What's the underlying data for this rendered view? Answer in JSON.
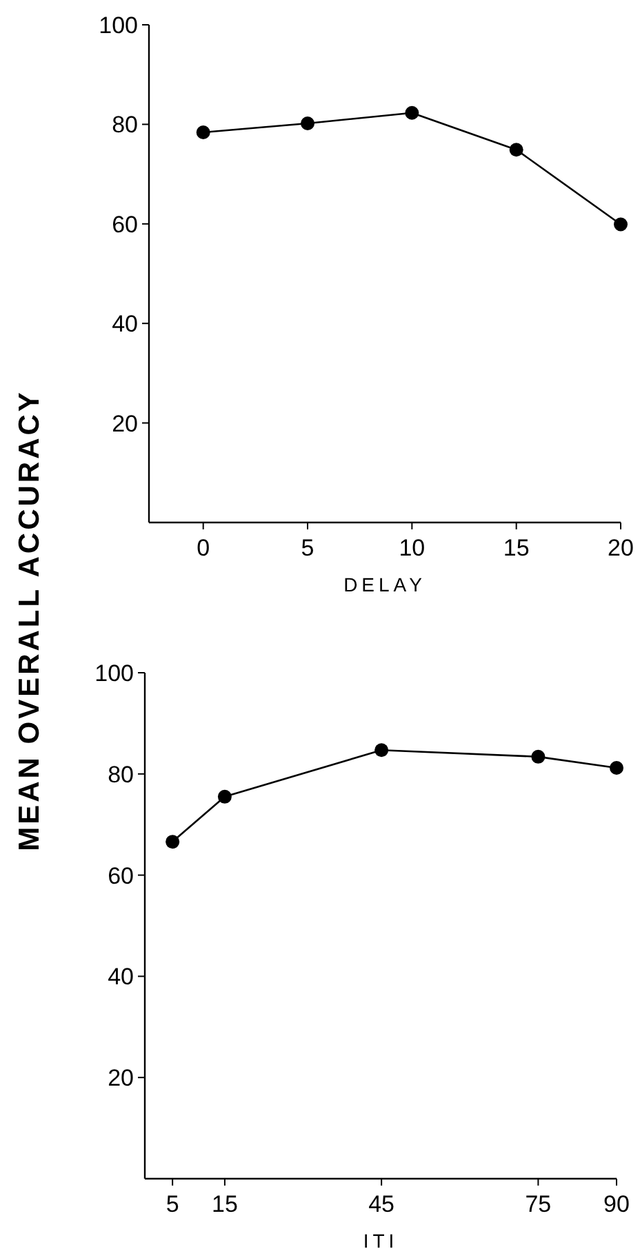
{
  "chart_data": [
    {
      "type": "line",
      "xlabel": "DELAY",
      "ylabel": "MEAN OVERALL ACCURACY",
      "x": [
        0,
        5,
        10,
        15,
        20
      ],
      "xlim": [
        -2.6,
        20
      ],
      "xticks": [
        0,
        5,
        10,
        15,
        20
      ],
      "ylim": [
        0,
        100
      ],
      "yticks": [
        20,
        40,
        60,
        80,
        100
      ],
      "marker": "circle",
      "line_style": "solid",
      "series": [
        {
          "color": "#000000",
          "values": [
            78.4,
            80.2,
            82.3,
            74.9,
            59.9
          ]
        }
      ]
    },
    {
      "type": "line",
      "xlabel": "ITI",
      "x": [
        5,
        15,
        45,
        75,
        90
      ],
      "xlim": [
        -0.3,
        90
      ],
      "xticks": [
        5,
        15,
        45,
        75,
        90
      ],
      "ylim": [
        0,
        100
      ],
      "yticks": [
        20,
        40,
        60,
        80,
        100
      ],
      "marker": "circle",
      "line_style": "solid",
      "series": [
        {
          "color": "#000000",
          "values": [
            66.6,
            75.5,
            84.7,
            83.4,
            81.2
          ]
        }
      ]
    }
  ]
}
